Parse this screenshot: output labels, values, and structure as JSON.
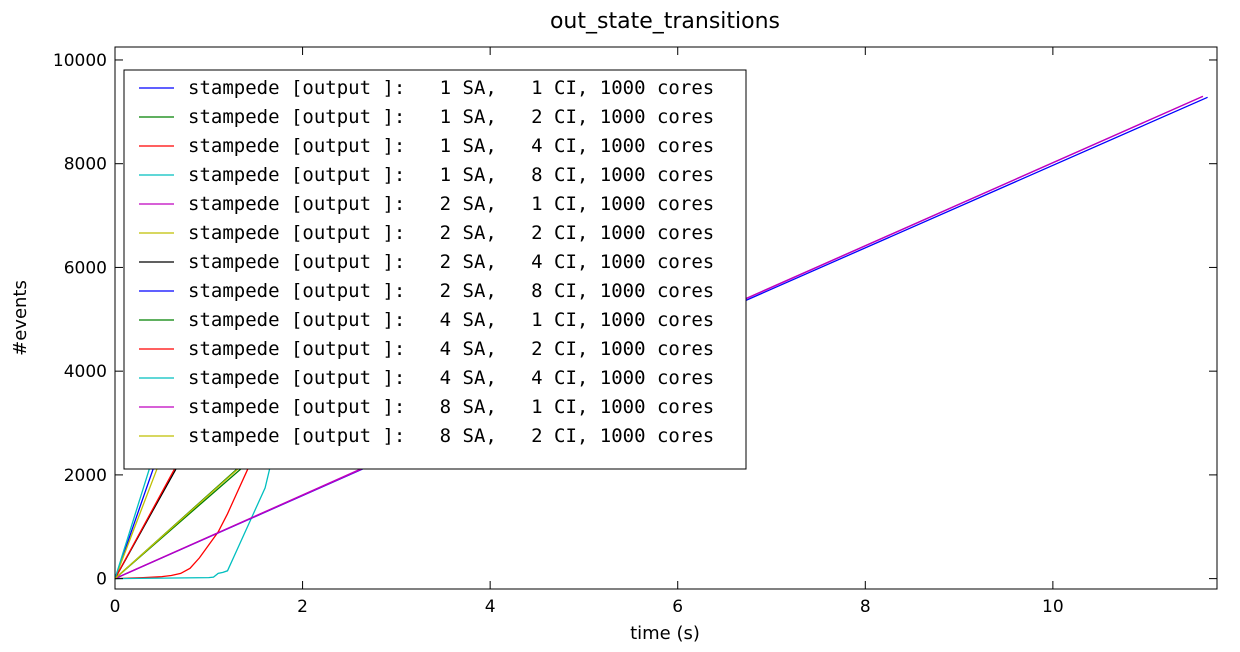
{
  "chart_data": {
    "type": "line",
    "title": "out_state_transitions",
    "xlabel": "time (s)",
    "ylabel": "#events",
    "xlim": [
      0,
      11.75
    ],
    "ylim": [
      -200,
      10250
    ],
    "xticks": [
      0,
      2,
      4,
      6,
      8,
      10
    ],
    "xtick_labels": [
      "0",
      "2",
      "4",
      "6",
      "8",
      "10"
    ],
    "yticks": [
      0,
      2000,
      4000,
      6000,
      8000,
      10000
    ],
    "ytick_labels": [
      "0",
      "2000",
      "4000",
      "6000",
      "8000",
      "10000"
    ],
    "grid": false,
    "legend_position": "upper-left",
    "series": [
      {
        "name": "stampede [output ]:   1 SA,   1 CI, 1000 cores",
        "color": "#0000ff",
        "x": [
          0,
          0.5
        ],
        "y": [
          0,
          2600
        ]
      },
      {
        "name": "stampede [output ]:   1 SA,   2 CI, 1000 cores",
        "color": "#008000",
        "x": [
          0,
          1.65
        ],
        "y": [
          0,
          2600
        ]
      },
      {
        "name": "stampede [output ]:   1 SA,   4 CI, 1000 cores",
        "color": "#ff0000",
        "x": [
          0,
          0.3,
          0.5,
          0.6,
          0.7,
          0.8,
          0.9,
          1.0,
          1.1,
          1.2,
          1.3,
          1.4,
          1.5
        ],
        "y": [
          0,
          20,
          40,
          60,
          100,
          200,
          400,
          650,
          900,
          1250,
          1650,
          2050,
          2450
        ]
      },
      {
        "name": "stampede [output ]:   1 SA,   8 CI, 1000 cores",
        "color": "#00bfbf",
        "x": [
          0,
          0.5,
          1.0,
          1.05,
          1.1,
          1.15,
          1.2,
          1.3,
          1.4,
          1.5,
          1.6,
          1.7
        ],
        "y": [
          0,
          10,
          20,
          30,
          100,
          120,
          150,
          550,
          950,
          1350,
          1750,
          2500
        ]
      },
      {
        "name": "stampede [output ]:   2 SA,   1 CI, 1000 cores",
        "color": "#bf00bf",
        "x": [
          0,
          3.0,
          11.6
        ],
        "y": [
          0,
          2420,
          9300
        ]
      },
      {
        "name": "stampede [output ]:   2 SA,   2 CI, 1000 cores",
        "color": "#bfbf00",
        "x": [
          0,
          0.55
        ],
        "y": [
          0,
          2600
        ]
      },
      {
        "name": "stampede [output ]:   2 SA,   4 CI, 1000 cores",
        "color": "#000000",
        "x": [
          0,
          0.8
        ],
        "y": [
          0,
          2600
        ]
      },
      {
        "name": "stampede [output ]:   2 SA,   8 CI, 1000 cores",
        "color": "#0000ff",
        "x": [
          0,
          3.0,
          11.65
        ],
        "y": [
          0,
          2400,
          9280
        ]
      },
      {
        "name": "stampede [output ]:   4 SA,   1 CI, 1000 cores",
        "color": "#008000",
        "x": [
          0,
          1.6
        ],
        "y": [
          0,
          2600
        ]
      },
      {
        "name": "stampede [output ]:   4 SA,   2 CI, 1000 cores",
        "color": "#ff0000",
        "x": [
          0,
          0.78
        ],
        "y": [
          0,
          2600
        ]
      },
      {
        "name": "stampede [output ]:   4 SA,   4 CI, 1000 cores",
        "color": "#00bfbf",
        "x": [
          0,
          0.45
        ],
        "y": [
          0,
          2600
        ]
      },
      {
        "name": "stampede [output ]:   8 SA,   1 CI, 1000 cores",
        "color": "#bf00bf",
        "x": [
          0,
          3.0,
          11.6
        ],
        "y": [
          0,
          2410,
          9300
        ]
      },
      {
        "name": "stampede [output ]:   8 SA,   2 CI, 1000 cores",
        "color": "#bfbf00",
        "x": [
          0,
          1.55
        ],
        "y": [
          0,
          2500
        ]
      }
    ]
  }
}
